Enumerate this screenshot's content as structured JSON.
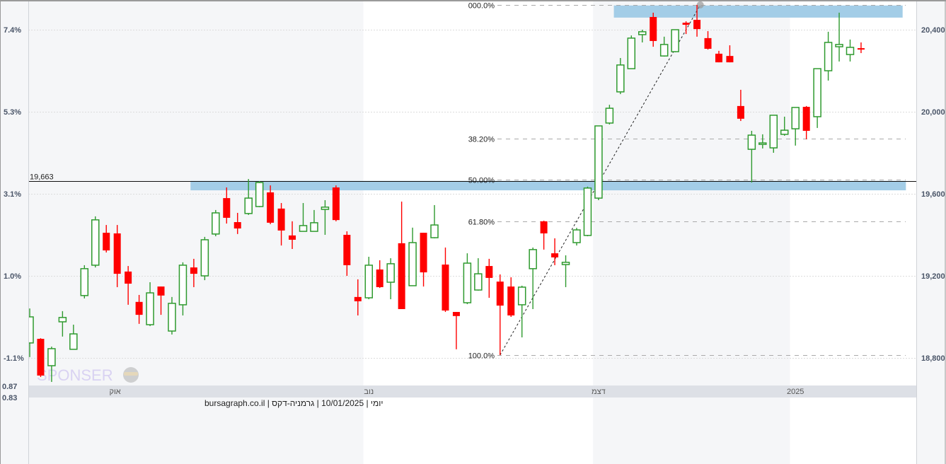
{
  "chart_data": {
    "type": "candlestick",
    "title": "",
    "footer": "יומי | 10/01/2025 | גרמניה-דקס | bursagraph.co.il",
    "watermark": "SPONSER",
    "colors": {
      "up": "#2e9a2e",
      "down": "#ff0000",
      "zone": "#9ecae6",
      "band": "#f5f6f8",
      "axis_strip": "#dde0e6"
    },
    "y_right": {
      "ticks": [
        20400,
        20000,
        19600,
        19200,
        18800
      ],
      "labels": [
        "20,400",
        "20,000",
        "19,600",
        "19,200",
        "18,800"
      ],
      "range": [
        18660,
        20530
      ]
    },
    "y_left": {
      "labels": [
        "7.4%",
        "5.3%",
        "3.1%",
        "1.0%",
        "-1.1%"
      ],
      "extra_labels": [
        "0.87",
        "0.83"
      ]
    },
    "x_labels": [
      {
        "label": "אוק",
        "index": 7.8
      },
      {
        "label": "נוב",
        "index": 31
      },
      {
        "label": "דצמ",
        "index": 52
      },
      {
        "label": "2025",
        "index": 70
      }
    ],
    "month_starts": [
      0,
      31,
      52,
      70
    ],
    "grid": true,
    "candles_ohlc": [
      [
        18873,
        19041,
        18804,
        19000
      ],
      [
        18893,
        18896,
        18707,
        18714
      ],
      [
        18762,
        18855,
        18683,
        18845
      ],
      [
        18976,
        19028,
        18904,
        18997
      ],
      [
        18842,
        18962,
        18842,
        18917
      ],
      [
        19104,
        19252,
        19090,
        19235
      ],
      [
        19252,
        19490,
        19241,
        19473
      ],
      [
        19410,
        19448,
        19314,
        19324
      ],
      [
        19407,
        19448,
        19145,
        19210
      ],
      [
        19221,
        19248,
        19059,
        19162
      ],
      [
        19073,
        19107,
        18966,
        19010
      ],
      [
        18962,
        19169,
        18955,
        19117
      ],
      [
        19148,
        19148,
        19010,
        19104
      ],
      [
        18931,
        19097,
        18914,
        19066
      ],
      [
        19059,
        19266,
        19007,
        19252
      ],
      [
        19241,
        19283,
        19145,
        19210
      ],
      [
        19200,
        19390,
        19179,
        19376
      ],
      [
        19404,
        19521,
        19393,
        19507
      ],
      [
        19579,
        19631,
        19455,
        19483
      ],
      [
        19462,
        19507,
        19404,
        19431
      ],
      [
        19504,
        19672,
        19497,
        19579
      ],
      [
        19538,
        19662,
        19535,
        19655
      ],
      [
        19607,
        19641,
        19452,
        19459
      ],
      [
        19528,
        19555,
        19348,
        19421
      ],
      [
        19397,
        19466,
        19331,
        19376
      ],
      [
        19417,
        19555,
        19417,
        19445
      ],
      [
        19417,
        19521,
        19417,
        19459
      ],
      [
        19524,
        19569,
        19400,
        19535
      ],
      [
        19631,
        19641,
        19466,
        19472
      ],
      [
        19400,
        19417,
        19200,
        19252
      ],
      [
        19097,
        19183,
        19007,
        19076
      ],
      [
        19093,
        19293,
        19086,
        19252
      ],
      [
        19231,
        19276,
        19141,
        19145
      ],
      [
        19169,
        19286,
        19086,
        19259
      ],
      [
        19359,
        19562,
        19038,
        19038
      ],
      [
        19152,
        19435,
        19152,
        19362
      ],
      [
        19410,
        19410,
        19148,
        19217
      ],
      [
        19386,
        19545,
        19383,
        19448
      ],
      [
        19255,
        19338,
        19024,
        19031
      ],
      [
        19024,
        19024,
        18842,
        19004
      ],
      [
        19069,
        19310,
        19062,
        19262
      ],
      [
        19131,
        19286,
        19128,
        19210
      ],
      [
        19248,
        19283,
        19093,
        19190
      ],
      [
        19172,
        19207,
        18814,
        19055
      ],
      [
        19148,
        19193,
        19000,
        19007
      ],
      [
        19059,
        19152,
        18900,
        19145
      ],
      [
        19235,
        19338,
        19038,
        19328
      ],
      [
        19466,
        19469,
        19328,
        19407
      ],
      [
        19310,
        19383,
        19252,
        19290
      ],
      [
        19255,
        19300,
        19145,
        19266
      ],
      [
        19362,
        19434,
        19348,
        19424
      ],
      [
        19397,
        19635,
        19393,
        19628
      ],
      [
        19579,
        19931,
        19569,
        19931
      ],
      [
        19945,
        20034,
        19938,
        20017
      ],
      [
        20097,
        20262,
        20086,
        20228
      ],
      [
        20210,
        20372,
        20210,
        20359
      ],
      [
        20376,
        20400,
        20338,
        20390
      ],
      [
        20462,
        20483,
        20317,
        20345
      ],
      [
        20272,
        20366,
        20269,
        20328
      ],
      [
        20293,
        20400,
        20290,
        20400
      ],
      [
        20434,
        20441,
        20379,
        20424
      ],
      [
        20448,
        20521,
        20366,
        20403
      ],
      [
        20359,
        20393,
        20303,
        20307
      ],
      [
        20283,
        20297,
        20241,
        20241
      ],
      [
        20272,
        20324,
        20241,
        20241
      ],
      [
        20028,
        20107,
        19955,
        19966
      ],
      [
        19817,
        19907,
        19655,
        19886
      ],
      [
        19841,
        19890,
        19821,
        19848
      ],
      [
        19824,
        19983,
        19800,
        19983
      ],
      [
        19890,
        19976,
        19883,
        19910
      ],
      [
        19917,
        20021,
        19835,
        20021
      ],
      [
        20024,
        20028,
        19866,
        19907
      ],
      [
        19976,
        20210,
        19921,
        20210
      ],
      [
        20200,
        20390,
        20152,
        20338
      ],
      [
        20317,
        20483,
        20245,
        20328
      ],
      [
        20279,
        20352,
        20245,
        20314
      ],
      [
        20310,
        20338,
        20286,
        20307
      ]
    ],
    "horizontal_line": {
      "price": 19663,
      "label": "19,663"
    },
    "zones": [
      {
        "from_index": 53.4,
        "to_index": 79.8,
        "top": 20518,
        "bottom": 20459
      },
      {
        "from_index": 14.7,
        "to_index": 80.1,
        "top": 19663,
        "bottom": 19617
      }
    ],
    "fibonacci": {
      "start": {
        "index": 43,
        "price": 18814
      },
      "end": {
        "index": 61.3,
        "price": 20521
      },
      "levels": [
        {
          "ratio": 0,
          "label": "000.0%"
        },
        {
          "ratio": 0.382,
          "label": "38.20%"
        },
        {
          "ratio": 0.5,
          "label": "50.00%"
        },
        {
          "ratio": 0.618,
          "label": "61.80%"
        },
        {
          "ratio": 1,
          "label": "100.0%"
        }
      ]
    }
  }
}
